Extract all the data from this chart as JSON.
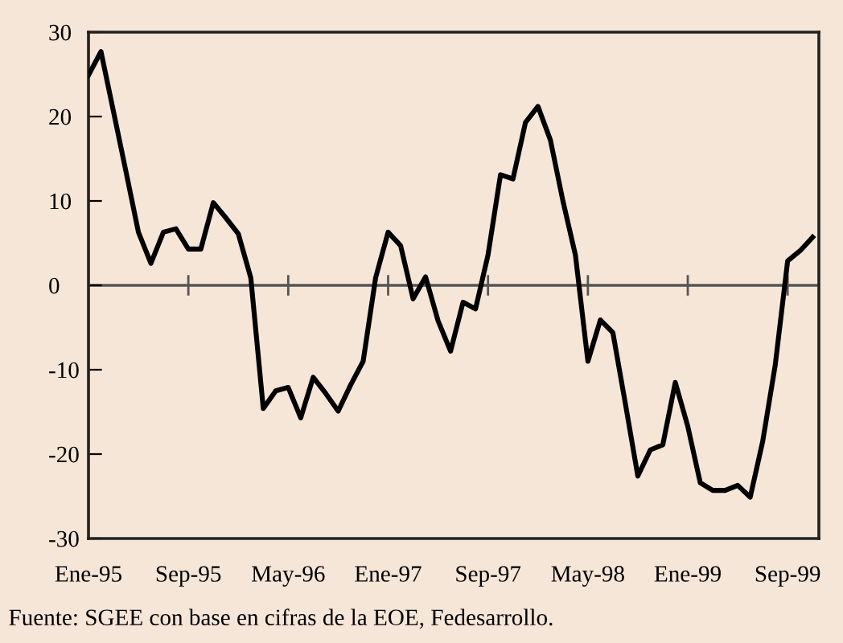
{
  "chart_data": {
    "type": "line",
    "categories": [
      "Ene-95",
      null,
      null,
      null,
      null,
      null,
      null,
      null,
      "Sep-95",
      null,
      null,
      null,
      null,
      null,
      null,
      null,
      "May-96",
      null,
      null,
      null,
      null,
      null,
      null,
      null,
      "Ene-97",
      null,
      null,
      null,
      null,
      null,
      null,
      null,
      "Sep-97",
      null,
      null,
      null,
      null,
      null,
      null,
      null,
      "May-98",
      null,
      null,
      null,
      null,
      null,
      null,
      null,
      "Ene-99",
      null,
      null,
      null,
      null,
      null,
      null,
      null,
      "Sep-99",
      null,
      null
    ],
    "series": [
      {
        "color": "#000000",
        "values": [
          24.9,
          27.7,
          20.6,
          13.5,
          6.3,
          2.6,
          6.3,
          6.7,
          4.3,
          4.3,
          9.8,
          8.0,
          6.1,
          0.9,
          -14.6,
          -12.5,
          -12.1,
          -15.7,
          -10.9,
          -12.8,
          -14.9,
          -11.8,
          -9.0,
          0.9,
          6.3,
          4.7,
          -1.6,
          1.0,
          -4.2,
          -7.8,
          -2.0,
          -2.8,
          3.6,
          13.1,
          12.6,
          19.3,
          21.2,
          17.2,
          10.0,
          3.6,
          -9.0,
          -4.1,
          -5.6,
          -14.0,
          -22.6,
          -19.5,
          -18.9,
          -11.5,
          -16.7,
          -23.4,
          -24.3,
          -24.3,
          -23.7,
          -25.1,
          -18.5,
          -9.5,
          2.9,
          4.1,
          5.7
        ]
      }
    ],
    "ylim": [
      -30,
      30
    ],
    "yticks": [
      -30,
      -20,
      -10,
      0,
      10,
      20,
      30
    ],
    "ref_lines": [
      {
        "axis": "y",
        "value": 0,
        "color": "#555555"
      }
    ],
    "annotations": [
      "Fuente: SGEE con base en cifras de la EOE, Fedesarrollo."
    ],
    "grid": false,
    "legend": false,
    "marker": "none",
    "line_style": "solid"
  }
}
